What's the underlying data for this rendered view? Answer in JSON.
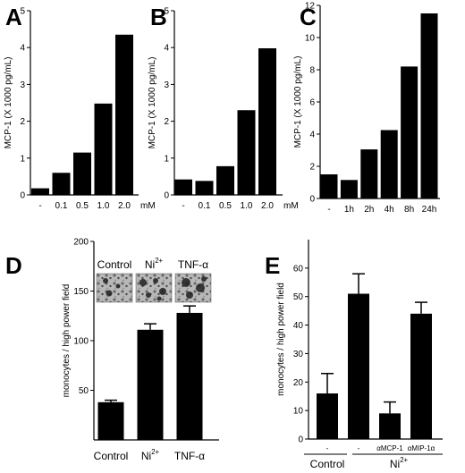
{
  "chart_data": [
    {
      "panel": "A",
      "type": "bar",
      "categories": [
        "-",
        "0.1",
        "0.5",
        "1.0",
        "2.0"
      ],
      "unit_label": "mM",
      "values": [
        0.18,
        0.6,
        1.15,
        2.48,
        4.35
      ],
      "ylabel": "MCP-1 (X 1000 pg/mL)",
      "ylim": [
        0,
        5
      ],
      "yticks": [
        "0",
        "1",
        "2",
        "3",
        "4",
        "5"
      ]
    },
    {
      "panel": "B",
      "type": "bar",
      "categories": [
        "-",
        "0.1",
        "0.5",
        "1.0",
        "2.0"
      ],
      "unit_label": "mM",
      "values": [
        0.42,
        0.38,
        0.78,
        2.3,
        3.98
      ],
      "ylabel": "MCP-1 (X 1000 pg/mL)",
      "ylim": [
        0,
        5
      ],
      "yticks": [
        "0",
        "1",
        "2",
        "3",
        "4",
        "5"
      ]
    },
    {
      "panel": "C",
      "type": "bar",
      "categories": [
        "-",
        "1h",
        "2h",
        "4h",
        "8h",
        "24h"
      ],
      "values": [
        1.5,
        1.15,
        3.05,
        4.25,
        8.2,
        11.5
      ],
      "ylabel": "MCP-1 (X 1000 pg/mL)",
      "ylim": [
        0,
        12
      ],
      "yticks": [
        "0",
        "2",
        "4",
        "6",
        "8",
        "10",
        "12"
      ]
    },
    {
      "panel": "D",
      "type": "bar",
      "categories": [
        "Control",
        "Ni2+",
        "TNF-α"
      ],
      "values": [
        38,
        111,
        128
      ],
      "errors": [
        2,
        6,
        7
      ],
      "ylabel": "monocytes / high power field",
      "ylim": [
        0,
        200
      ],
      "yticks": [
        "50",
        "100",
        "150",
        "200"
      ],
      "image_labels": [
        "Control",
        "Ni2+",
        "TNF-α"
      ]
    },
    {
      "panel": "E",
      "type": "bar",
      "categories": [
        "-",
        "-",
        "αMCP-1",
        "αMIP-1α"
      ],
      "values": [
        16,
        51,
        9,
        44
      ],
      "errors": [
        7,
        7,
        4,
        4
      ],
      "ylabel": "monocytes / high power field",
      "ylim": [
        0,
        70
      ],
      "yticks": [
        "0",
        "10",
        "20",
        "30",
        "40",
        "50",
        "60"
      ],
      "groups": [
        "Control",
        "Ni2+"
      ]
    }
  ]
}
